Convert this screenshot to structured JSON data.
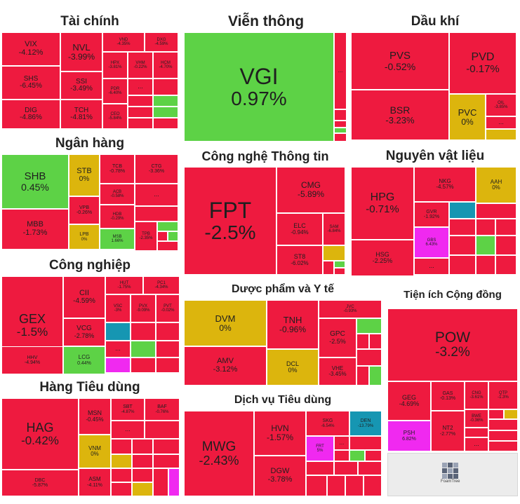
{
  "colors": {
    "red": "#ee1a3f",
    "green": "#5dd246",
    "yellow": "#dcb50d",
    "cyan": "#1696b2",
    "magenta": "#f029f0",
    "background": "#ffffff"
  },
  "chart_data": {
    "type": "treemap",
    "title": "",
    "unit": "%",
    "sectors": [
      {
        "name": "Tài chính",
        "tiles": [
          {
            "label": "VIX",
            "value": "-4.12%"
          },
          {
            "label": "NVL",
            "value": "-3.99%"
          },
          {
            "label": "VND",
            "value": "-4.35%"
          },
          {
            "label": "DXG",
            "value": "-4.59%"
          },
          {
            "label": "SHS",
            "value": "-6.45%"
          },
          {
            "label": "HPX",
            "value": "-3.81%"
          },
          {
            "label": "VHM",
            "value": "-0.22%"
          },
          {
            "label": "HCM",
            "value": "-4.70%"
          },
          {
            "label": "SSI",
            "value": "-3.49%"
          },
          {
            "label": "PDR",
            "value": "-6.40%"
          },
          {
            "label": "DIG",
            "value": "-4.86%"
          },
          {
            "label": "TCH",
            "value": "-4.81%"
          },
          {
            "label": "CEO",
            "value": "-5.84%"
          },
          {
            "label": "...",
            "value": ""
          }
        ]
      },
      {
        "name": "Viễn thông",
        "tiles": [
          {
            "label": "VGI",
            "value": "0.97%"
          },
          {
            "label": "...",
            "value": ""
          }
        ]
      },
      {
        "name": "Dầu khí",
        "tiles": [
          {
            "label": "PVS",
            "value": "-0.52%"
          },
          {
            "label": "PVD",
            "value": "-0.17%"
          },
          {
            "label": "BSR",
            "value": "-3.23%"
          },
          {
            "label": "PVC",
            "value": "0%"
          },
          {
            "label": "OIL",
            "value": "-3.85%"
          },
          {
            "label": "...",
            "value": ""
          }
        ]
      },
      {
        "name": "Ngân hàng",
        "tiles": [
          {
            "label": "SHB",
            "value": "0.45%"
          },
          {
            "label": "STB",
            "value": "0%"
          },
          {
            "label": "TCB",
            "value": "-0.78%"
          },
          {
            "label": "CTG",
            "value": "-3.36%"
          },
          {
            "label": "ACB",
            "value": "-0.58%"
          },
          {
            "label": "MBB",
            "value": "-1.73%"
          },
          {
            "label": "VPB",
            "value": "-0.26%"
          },
          {
            "label": "HDB",
            "value": "-0.29%"
          },
          {
            "label": "TPB",
            "value": "-2.35%"
          },
          {
            "label": "LPB",
            "value": "0%"
          },
          {
            "label": "MSB",
            "value": "1.66%"
          },
          {
            "label": "...",
            "value": ""
          }
        ]
      },
      {
        "name": "Công nghệ Thông tin",
        "tiles": [
          {
            "label": "FPT",
            "value": "-2.5%"
          },
          {
            "label": "CMG",
            "value": "-5.89%"
          },
          {
            "label": "ELC",
            "value": "-0.94%"
          },
          {
            "label": "SAM",
            "value": "-6.84%"
          },
          {
            "label": "ST8",
            "value": "-6.02%"
          }
        ]
      },
      {
        "name": "Nguyên vật liệu",
        "tiles": [
          {
            "label": "HPG",
            "value": "-0.71%"
          },
          {
            "label": "NKG",
            "value": "-4.57%"
          },
          {
            "label": "AAH",
            "value": "0%"
          },
          {
            "label": "GVR",
            "value": "-1.92%"
          },
          {
            "label": "HSG",
            "value": "-2.25%"
          },
          {
            "label": "GBS",
            "value": "6.43%"
          },
          {
            "label": "...",
            "value": ""
          }
        ]
      },
      {
        "name": "Công nghiệp",
        "tiles": [
          {
            "label": "GEX",
            "value": "-1.5%"
          },
          {
            "label": "CII",
            "value": "-4.59%"
          },
          {
            "label": "HUT",
            "value": "-1.75%"
          },
          {
            "label": "PC1",
            "value": "-4.34%"
          },
          {
            "label": "VSC",
            "value": "-3%"
          },
          {
            "label": "PVX",
            "value": "-9.09%"
          },
          {
            "label": "PVT",
            "value": "-0.02%"
          },
          {
            "label": "VCG",
            "value": "-2.78%"
          },
          {
            "label": "HHV",
            "value": "-4.94%"
          },
          {
            "label": "LCG",
            "value": "0.44%"
          },
          {
            "label": "...",
            "value": ""
          }
        ]
      },
      {
        "name": "Dược phẩm và Y tế",
        "tiles": [
          {
            "label": "DVM",
            "value": "0%"
          },
          {
            "label": "TNH",
            "value": "-0.96%"
          },
          {
            "label": "JVC",
            "value": "-0.93%"
          },
          {
            "label": "GPC",
            "value": "-2.5%"
          },
          {
            "label": "AMV",
            "value": "-3.12%"
          },
          {
            "label": "DCL",
            "value": "0%"
          },
          {
            "label": "VHE",
            "value": "-3.45%"
          }
        ]
      },
      {
        "name": "Tiện ích Cộng đồng",
        "tiles": [
          {
            "label": "POW",
            "value": "-3.2%"
          },
          {
            "label": "GEG",
            "value": "-4.69%"
          },
          {
            "label": "GAS",
            "value": "-0.13%"
          },
          {
            "label": "CNG",
            "value": "-3.61%"
          },
          {
            "label": "QTP",
            "value": "-1.3%"
          },
          {
            "label": "BWE",
            "value": "-0.36%"
          },
          {
            "label": "PSH",
            "value": "6.82%"
          },
          {
            "label": "NT2",
            "value": "-2.77%"
          },
          {
            "label": "...",
            "value": ""
          }
        ]
      },
      {
        "name": "Hàng Tiêu dùng",
        "tiles": [
          {
            "label": "HAG",
            "value": "-0.42%"
          },
          {
            "label": "MSN",
            "value": "-0.45%"
          },
          {
            "label": "SBT",
            "value": "-4.87%"
          },
          {
            "label": "BAF",
            "value": "-0.76%"
          },
          {
            "label": "VNM",
            "value": "0%"
          },
          {
            "label": "DBC",
            "value": "-5.87%"
          },
          {
            "label": "ASM",
            "value": "-4.11%"
          },
          {
            "label": "...",
            "value": ""
          }
        ]
      },
      {
        "name": "Dịch vụ Tiêu dùng",
        "tiles": [
          {
            "label": "MWG",
            "value": "-2.43%"
          },
          {
            "label": "HVN",
            "value": "-1.57%"
          },
          {
            "label": "SKG",
            "value": "-6.54%"
          },
          {
            "label": "DEN",
            "value": "-13.79%"
          },
          {
            "label": "FRT",
            "value": "5%"
          },
          {
            "label": "DGW",
            "value": "-3.78%"
          },
          {
            "label": "...",
            "value": ""
          }
        ]
      }
    ]
  },
  "footer": {
    "logo_text": "FoamTree"
  }
}
